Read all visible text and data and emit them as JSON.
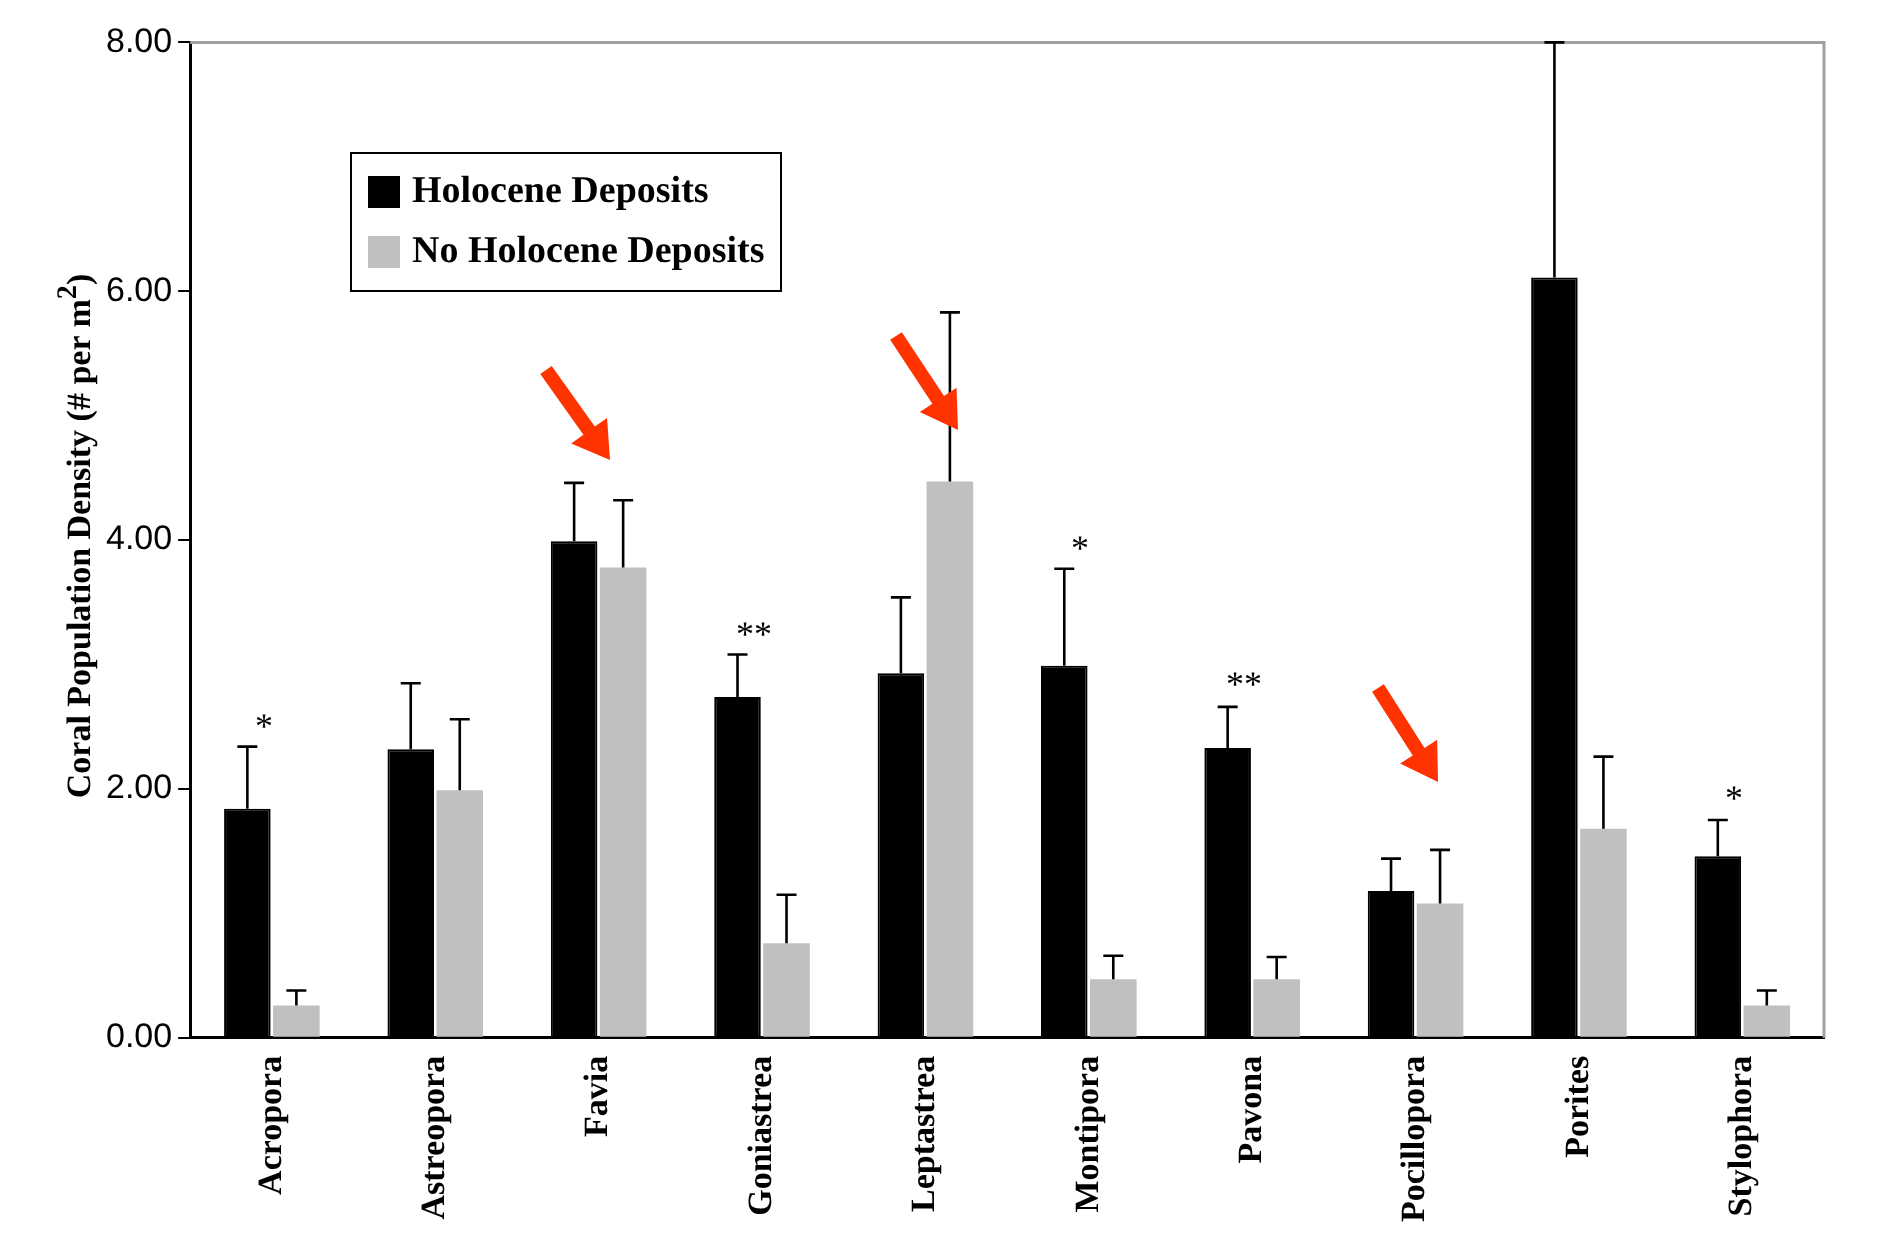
{
  "chart_data": {
    "type": "bar",
    "ylabel": "Coral Population Density (# per m$^{2}$)",
    "categories": [
      "Acropora",
      "Astreopora",
      "Favia",
      "Goniastrea",
      "Leptastrea",
      "Montipora",
      "Pavona",
      "Pocillopora",
      "Porites",
      "Stylophora"
    ],
    "series": [
      {
        "name": "Holocene Deposits",
        "color": "#000000",
        "values": [
          1.84,
          2.32,
          3.99,
          2.74,
          2.93,
          2.99,
          2.33,
          1.18,
          6.11,
          1.46
        ],
        "errors": [
          [
            1.84,
            2.34
          ],
          [
            2.32,
            2.85
          ],
          [
            3.99,
            4.46
          ],
          [
            2.74,
            3.08
          ],
          [
            2.93,
            3.54
          ],
          [
            2.99,
            3.77
          ],
          [
            2.33,
            2.66
          ],
          [
            1.18,
            1.44
          ],
          [
            6.11,
            8.0
          ],
          [
            1.46,
            1.75
          ]
        ]
      },
      {
        "name": "No Holocene Deposits",
        "color": "#c0c0c0",
        "values": [
          0.26,
          1.99,
          3.78,
          0.76,
          4.47,
          0.47,
          0.47,
          1.08,
          1.68,
          0.26
        ],
        "errors": [
          [
            0.26,
            0.38
          ],
          [
            1.99,
            2.56
          ],
          [
            3.78,
            4.32
          ],
          [
            0.76,
            1.15
          ],
          [
            4.47,
            5.83
          ],
          [
            0.47,
            0.66
          ],
          [
            0.47,
            0.65
          ],
          [
            1.08,
            1.51
          ],
          [
            1.68,
            2.26
          ],
          [
            0.26,
            0.38
          ]
        ]
      }
    ],
    "ylim": [
      0,
      8
    ],
    "yticks": [
      {
        "value": 0,
        "label": "0.00"
      },
      {
        "value": 2,
        "label": "2.00"
      },
      {
        "value": 4,
        "label": "4.00"
      },
      {
        "value": 6,
        "label": "6.00"
      },
      {
        "value": 8,
        "label": "8.00"
      }
    ],
    "annotations": [
      "*",
      "**",
      "*",
      "**",
      "*"
    ],
    "legend": "top left",
    "grid": false
  }
}
